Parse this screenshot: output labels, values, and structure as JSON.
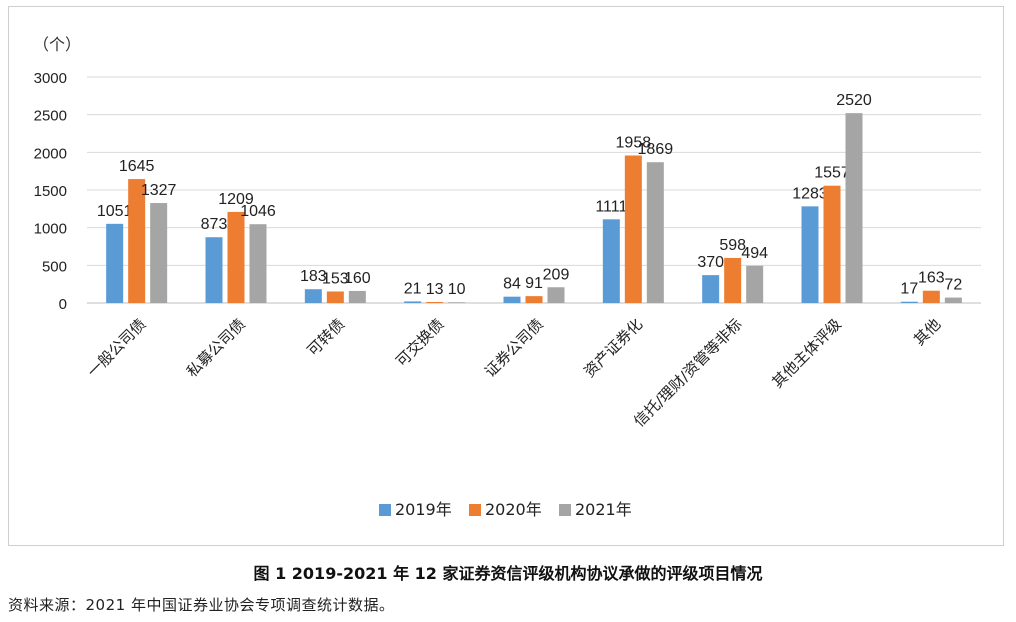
{
  "caption": "图 1   2019-2021 年 12 家证券资信评级机构协议承做的评级项目情况",
  "source": "资料来源：2021 年中国证券业协会专项调查统计数据。",
  "chart_data": {
    "type": "bar",
    "ylabel": "（个）",
    "ylim": [
      0,
      3000
    ],
    "yticks": [
      0,
      500,
      1000,
      1500,
      2000,
      2500,
      3000
    ],
    "grid": true,
    "legend_position": "bottom",
    "categories": [
      "一般公司债",
      "私募公司债",
      "可转债",
      "可交换债",
      "证券公司债",
      "资产证券化",
      "信托/理财/资管等非标",
      "其他主体评级",
      "其他"
    ],
    "series": [
      {
        "name": "2019年",
        "color": "#5b9bd5",
        "values": [
          1051,
          873,
          183,
          21,
          84,
          1111,
          370,
          1283,
          17
        ]
      },
      {
        "name": "2020年",
        "color": "#ed7d31",
        "values": [
          1645,
          1209,
          153,
          13,
          91,
          1958,
          598,
          1557,
          163
        ]
      },
      {
        "name": "2021年",
        "color": "#a5a5a5",
        "values": [
          1327,
          1046,
          160,
          10,
          209,
          1869,
          494,
          2520,
          72
        ]
      }
    ]
  }
}
